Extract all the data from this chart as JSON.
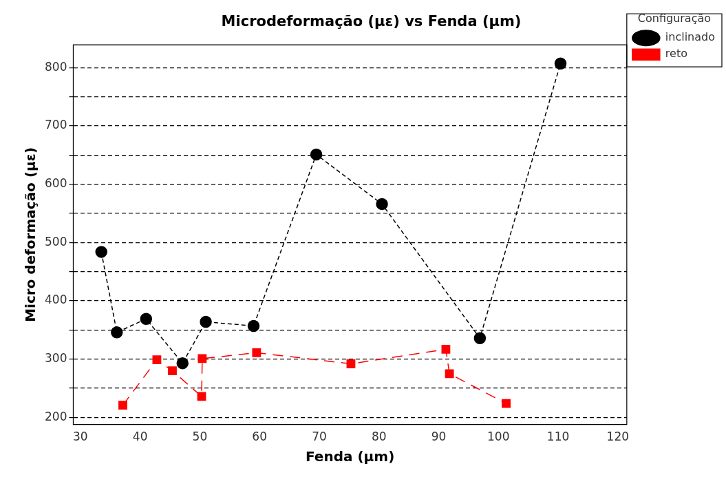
{
  "chart_data": {
    "type": "line",
    "title": "Microdeformação (µε) vs Fenda (µm)",
    "xlabel": "Fenda (µm)",
    "ylabel": "Micro deformação (µε)",
    "legend_title": "Configuração",
    "series": [
      {
        "name": "inclinado",
        "color": "#000000",
        "marker": "circle",
        "line_style": "dashed",
        "x": [
          33.5,
          36.1,
          41.0,
          47.1,
          51.0,
          59.0,
          69.5,
          80.5,
          96.9,
          110.4
        ],
        "values": [
          484,
          346,
          369,
          293,
          364,
          357,
          651,
          566,
          336,
          807
        ]
      },
      {
        "name": "reto",
        "color": "#ff0000",
        "marker": "square",
        "line_style": "dashed",
        "x": [
          37.1,
          42.8,
          45.4,
          50.3,
          50.4,
          59.5,
          75.3,
          91.2,
          91.8,
          101.3
        ],
        "values": [
          221,
          299,
          280,
          236,
          301,
          311,
          292,
          317,
          275,
          224
        ]
      }
    ],
    "xlim": [
      28.8,
      121.5
    ],
    "xticks": [
      30,
      40,
      50,
      60,
      70,
      80,
      90,
      100,
      110,
      120
    ],
    "ylim": [
      188,
      839
    ],
    "yticks": [
      200,
      {
        "value": 250,
        "label": null
      },
      300,
      {
        "value": 350,
        "label": null
      },
      400,
      {
        "value": 450,
        "label": null
      },
      500,
      {
        "value": 550,
        "label": null
      },
      600,
      {
        "value": 650,
        "label": null
      },
      700,
      {
        "value": 750,
        "label": null
      },
      800
    ],
    "grid": "y",
    "legend": "top right"
  }
}
